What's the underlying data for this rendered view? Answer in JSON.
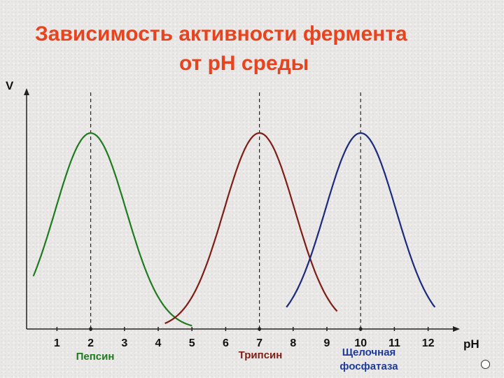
{
  "title": {
    "line1": "Зависимость активности фермента",
    "line2": "от pH среды"
  },
  "chart_data": {
    "type": "line",
    "title": "Зависимость активности фермента от pH среды",
    "xlabel": "pH",
    "ylabel": "V",
    "xticks": [
      "1",
      "2",
      "3",
      "4",
      "5",
      "6",
      "7",
      "8",
      "9",
      "10",
      "11",
      "12"
    ],
    "xlim": [
      0.1,
      12.9
    ],
    "ylim": [
      0,
      1.1
    ],
    "grid": false,
    "series": [
      {
        "name": "Пепсин",
        "color": "#1e7b1e",
        "optimum": 2,
        "range": [
          0.3,
          5.0
        ]
      },
      {
        "name": "Трипсин",
        "color": "#7d1d16",
        "optimum": 7,
        "range": [
          4.2,
          9.3
        ]
      },
      {
        "name": "Щелочная фосфатаза",
        "color": "#1c2a7e",
        "optimum": 10,
        "range": [
          7.8,
          12.2
        ]
      }
    ],
    "series_labels": [
      {
        "text": "Пепсин",
        "color": "#1e7b1e"
      },
      {
        "text": "Трипсин",
        "color": "#7d1d16"
      },
      {
        "text": "Щелочная",
        "color": "#1c3a9a"
      },
      {
        "text": "фосфатаза",
        "color": "#1c3a9a"
      }
    ]
  }
}
